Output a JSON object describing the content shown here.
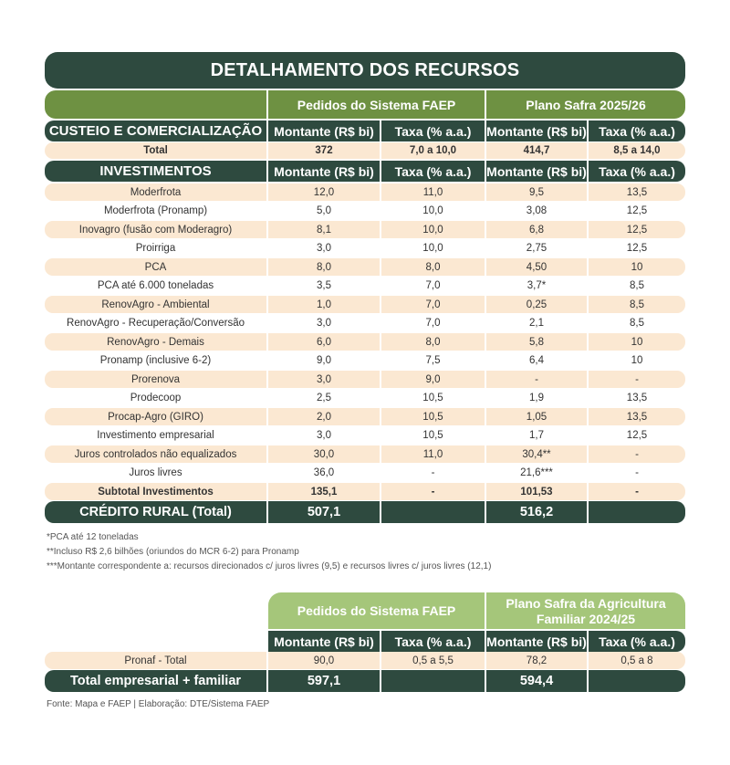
{
  "main": {
    "title": "DETALHAMENTO DOS RECURSOS",
    "group_headers": [
      "Pedidos do Sistema FAEP",
      "Plano Safra 2025/26"
    ],
    "col_headers": [
      "Montante (R$ bi)",
      "Taxa (% a.a.)",
      "Montante (R$ bi)",
      "Taxa (% a.a.)"
    ],
    "custeio_label": "CUSTEIO E COMERCIALIZAÇÃO",
    "custeio_total": {
      "label": "Total",
      "values": [
        "372",
        "7,0 a 10,0",
        "414,7",
        "8,5 a 14,0"
      ]
    },
    "investimentos_label": "INVESTIMENTOS",
    "rows": [
      {
        "label": "Moderfrota",
        "values": [
          "12,0",
          "11,0",
          "9,5",
          "13,5"
        ]
      },
      {
        "label": "Moderfrota (Pronamp)",
        "values": [
          "5,0",
          "10,0",
          "3,08",
          "12,5"
        ]
      },
      {
        "label": "Inovagro (fusão com Moderagro)",
        "values": [
          "8,1",
          "10,0",
          "6,8",
          "12,5"
        ]
      },
      {
        "label": "Proirriga",
        "values": [
          "3,0",
          "10,0",
          "2,75",
          "12,5"
        ]
      },
      {
        "label": "PCA",
        "values": [
          "8,0",
          "8,0",
          "4,50",
          "10"
        ]
      },
      {
        "label": "PCA até 6.000 toneladas",
        "values": [
          "3,5",
          "7,0",
          "3,7*",
          "8,5"
        ]
      },
      {
        "label": "RenovAgro - Ambiental",
        "values": [
          "1,0",
          "7,0",
          "0,25",
          "8,5"
        ]
      },
      {
        "label": "RenovAgro - Recuperação/Conversão",
        "values": [
          "3,0",
          "7,0",
          "2,1",
          "8,5"
        ]
      },
      {
        "label": "RenovAgro - Demais",
        "values": [
          "6,0",
          "8,0",
          "5,8",
          "10"
        ]
      },
      {
        "label": "Pronamp (inclusive 6-2)",
        "values": [
          "9,0",
          "7,5",
          "6,4",
          "10"
        ]
      },
      {
        "label": "Prorenova",
        "values": [
          "3,0",
          "9,0",
          "-",
          "-"
        ]
      },
      {
        "label": "Prodecoop",
        "values": [
          "2,5",
          "10,5",
          "1,9",
          "13,5"
        ]
      },
      {
        "label": "Procap-Agro (GIRO)",
        "values": [
          "2,0",
          "10,5",
          "1,05",
          "13,5"
        ]
      },
      {
        "label": "Investimento empresarial",
        "values": [
          "3,0",
          "10,5",
          "1,7",
          "12,5"
        ]
      },
      {
        "label": "Juros controlados não equalizados",
        "values": [
          "30,0",
          "11,0",
          "30,4**",
          "-"
        ]
      },
      {
        "label": "Juros livres",
        "values": [
          "36,0",
          "-",
          "21,6***",
          "-"
        ]
      }
    ],
    "subtotal": {
      "label": "Subtotal Investimentos",
      "values": [
        "135,1",
        "-",
        "101,53",
        "-"
      ]
    },
    "credito_total": {
      "label": "CRÉDITO RURAL (Total)",
      "values": [
        "507,1",
        "",
        "516,2",
        ""
      ]
    }
  },
  "notes": [
    "*PCA até 12 toneladas",
    "**Incluso R$ 2,6 bilhões (oriundos do MCR 6-2) para Pronamp",
    "***Montante correspondente a: recursos direcionados c/ juros livres (9,5) e recursos livres c/ juros livres (12,1)"
  ],
  "familiar": {
    "group_headers": [
      "Pedidos do Sistema FAEP",
      "Plano Safra da Agricultura",
      "Familiar 2024/25"
    ],
    "col_headers": [
      "Montante (R$ bi)",
      "Taxa (% a.a.)",
      "Montante (R$ bi)",
      "Taxa (% a.a.)"
    ],
    "pronaf": {
      "label": "Pronaf - Total",
      "values": [
        "90,0",
        "0,5 a 5,5",
        "78,2",
        "0,5 a 8"
      ]
    },
    "total": {
      "label": "Total empresarial + familiar",
      "values": [
        "597,1",
        "",
        "594,4",
        ""
      ]
    }
  },
  "source": "Fonte: Mapa e FAEP | Elaboração: DTE/Sistema FAEP",
  "colors": {
    "dark": "#2e4a3f",
    "green": "#6e9142",
    "light_green": "#a5c67a",
    "beige": "#fbe8d2"
  }
}
